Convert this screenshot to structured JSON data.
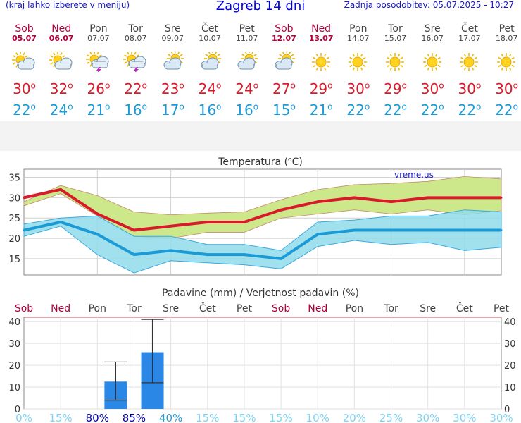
{
  "header": {
    "left": "(kraj lahko izberete v meniju)",
    "title": "Zagreb 14 dni",
    "right": "Zadnja posodobitev: 05.07.2025 - 10:27"
  },
  "days": [
    {
      "name": "Sob",
      "date": "05.07",
      "weekend": true,
      "icon": "sun-cloud-icon",
      "max": "30",
      "min": "22"
    },
    {
      "name": "Ned",
      "date": "06.07",
      "weekend": true,
      "icon": "sun-cloud-icon",
      "max": "32",
      "min": "24"
    },
    {
      "name": "Pon",
      "date": "07.07",
      "weekend": false,
      "icon": "sun-cloud-storm-icon",
      "max": "26",
      "min": "21"
    },
    {
      "name": "Tor",
      "date": "08.07",
      "weekend": false,
      "icon": "sun-cloud-storm-icon",
      "max": "22",
      "min": "16"
    },
    {
      "name": "Sre",
      "date": "09.07",
      "weekend": false,
      "icon": "cloud-sun-icon",
      "max": "23",
      "min": "17"
    },
    {
      "name": "Čet",
      "date": "10.07",
      "weekend": false,
      "icon": "cloud-sun-icon",
      "max": "24",
      "min": "16"
    },
    {
      "name": "Pet",
      "date": "11.07",
      "weekend": false,
      "icon": "cloud-sun-icon",
      "max": "24",
      "min": "16"
    },
    {
      "name": "Sob",
      "date": "12.07",
      "weekend": true,
      "icon": "cloud-sun-icon",
      "max": "27",
      "min": "15"
    },
    {
      "name": "Ned",
      "date": "13.07",
      "weekend": true,
      "icon": "sun-icon",
      "max": "29",
      "min": "21"
    },
    {
      "name": "Pon",
      "date": "14.07",
      "weekend": false,
      "icon": "sun-icon",
      "max": "30",
      "min": "22"
    },
    {
      "name": "Tor",
      "date": "15.07",
      "weekend": false,
      "icon": "sun-icon",
      "max": "29",
      "min": "22"
    },
    {
      "name": "Sre",
      "date": "16.07",
      "weekend": false,
      "icon": "sun-icon",
      "max": "30",
      "min": "22"
    },
    {
      "name": "Čet",
      "date": "17.07",
      "weekend": false,
      "icon": "sun-icon",
      "max": "30",
      "min": "22"
    },
    {
      "name": "Pet",
      "date": "18.07",
      "weekend": false,
      "icon": "sun-icon",
      "max": "30",
      "min": "22"
    }
  ],
  "degree_symbol": "o",
  "colors": {
    "max": "#d81b2a",
    "min": "#1a9ad6",
    "weekend": "#b0003a",
    "max_band": "#cde88a",
    "min_band": "#90dcea",
    "overlap": "#7fd07f",
    "bar": "#2b87e6",
    "prob_high": "#0000aa",
    "prob_low": "#7fd2f0"
  },
  "chart_data": [
    {
      "type": "line",
      "title": "Temperatura (",
      "title_unit": "C)",
      "title_degree": "o",
      "watermark": "vreme.us",
      "ylim": [
        11,
        37
      ],
      "yticks": [
        15,
        20,
        25,
        30,
        35
      ],
      "grid": true,
      "series": [
        {
          "values": [
            30,
            32,
            26,
            22,
            23,
            24,
            24,
            27,
            29,
            30,
            29,
            30,
            30,
            30
          ]
        },
        {
          "values": [
            22,
            24,
            21,
            16,
            17,
            16,
            16,
            15,
            21,
            22,
            22,
            22,
            22,
            22
          ]
        }
      ],
      "max_band_upper": [
        29,
        33,
        30.5,
        26.5,
        25.8,
        26.2,
        26.5,
        29.5,
        32,
        33.2,
        33.5,
        34,
        35.2,
        34.6
      ],
      "max_band_lower": [
        28,
        31,
        25.5,
        20.5,
        20,
        21.5,
        21.5,
        25,
        26,
        27,
        26,
        27,
        25.8,
        26.8
      ],
      "min_band_upper": [
        23.5,
        25,
        25.5,
        20.5,
        20.5,
        18.5,
        18.5,
        17,
        24,
        24.5,
        25.5,
        25.5,
        27,
        26.5
      ],
      "min_band_lower": [
        20.5,
        23,
        16,
        11.5,
        14.5,
        14,
        13.5,
        12.5,
        18,
        19.5,
        18.5,
        19,
        17,
        17.8
      ]
    },
    {
      "type": "bar",
      "title": "Padavine (mm) / Verjetnost padavin (%)",
      "categories": [
        "Sob",
        "Ned",
        "Pon",
        "Tor",
        "Sre",
        "Čet",
        "Pet",
        "Sob",
        "Ned",
        "Pon",
        "Tor",
        "Sre",
        "Čet",
        "Pet"
      ],
      "weekend": [
        true,
        true,
        false,
        false,
        false,
        false,
        false,
        true,
        true,
        false,
        false,
        false,
        false,
        false
      ],
      "values": [
        0,
        0,
        12.5,
        26,
        0,
        0,
        0,
        0,
        0,
        0,
        0,
        0,
        0,
        0
      ],
      "error_low": [
        null,
        null,
        4,
        12,
        null,
        null,
        null,
        null,
        null,
        null,
        null,
        null,
        null,
        null
      ],
      "error_high": [
        null,
        null,
        21.5,
        41,
        null,
        null,
        null,
        null,
        null,
        null,
        null,
        null,
        null,
        null
      ],
      "probability": [
        "0%",
        "15%",
        "80%",
        "85%",
        "40%",
        "15%",
        "15%",
        "15%",
        "10%",
        "20%",
        "25%",
        "30%",
        "30%",
        "30%"
      ],
      "prob_high": [
        false,
        false,
        true,
        true,
        false,
        false,
        false,
        false,
        false,
        false,
        false,
        false,
        false,
        false
      ],
      "prob_mid": [
        false,
        false,
        false,
        false,
        true,
        false,
        false,
        false,
        false,
        false,
        false,
        false,
        false,
        false
      ],
      "ylim": [
        0,
        42
      ],
      "yticks": [
        0,
        10,
        20,
        30,
        40
      ]
    }
  ]
}
